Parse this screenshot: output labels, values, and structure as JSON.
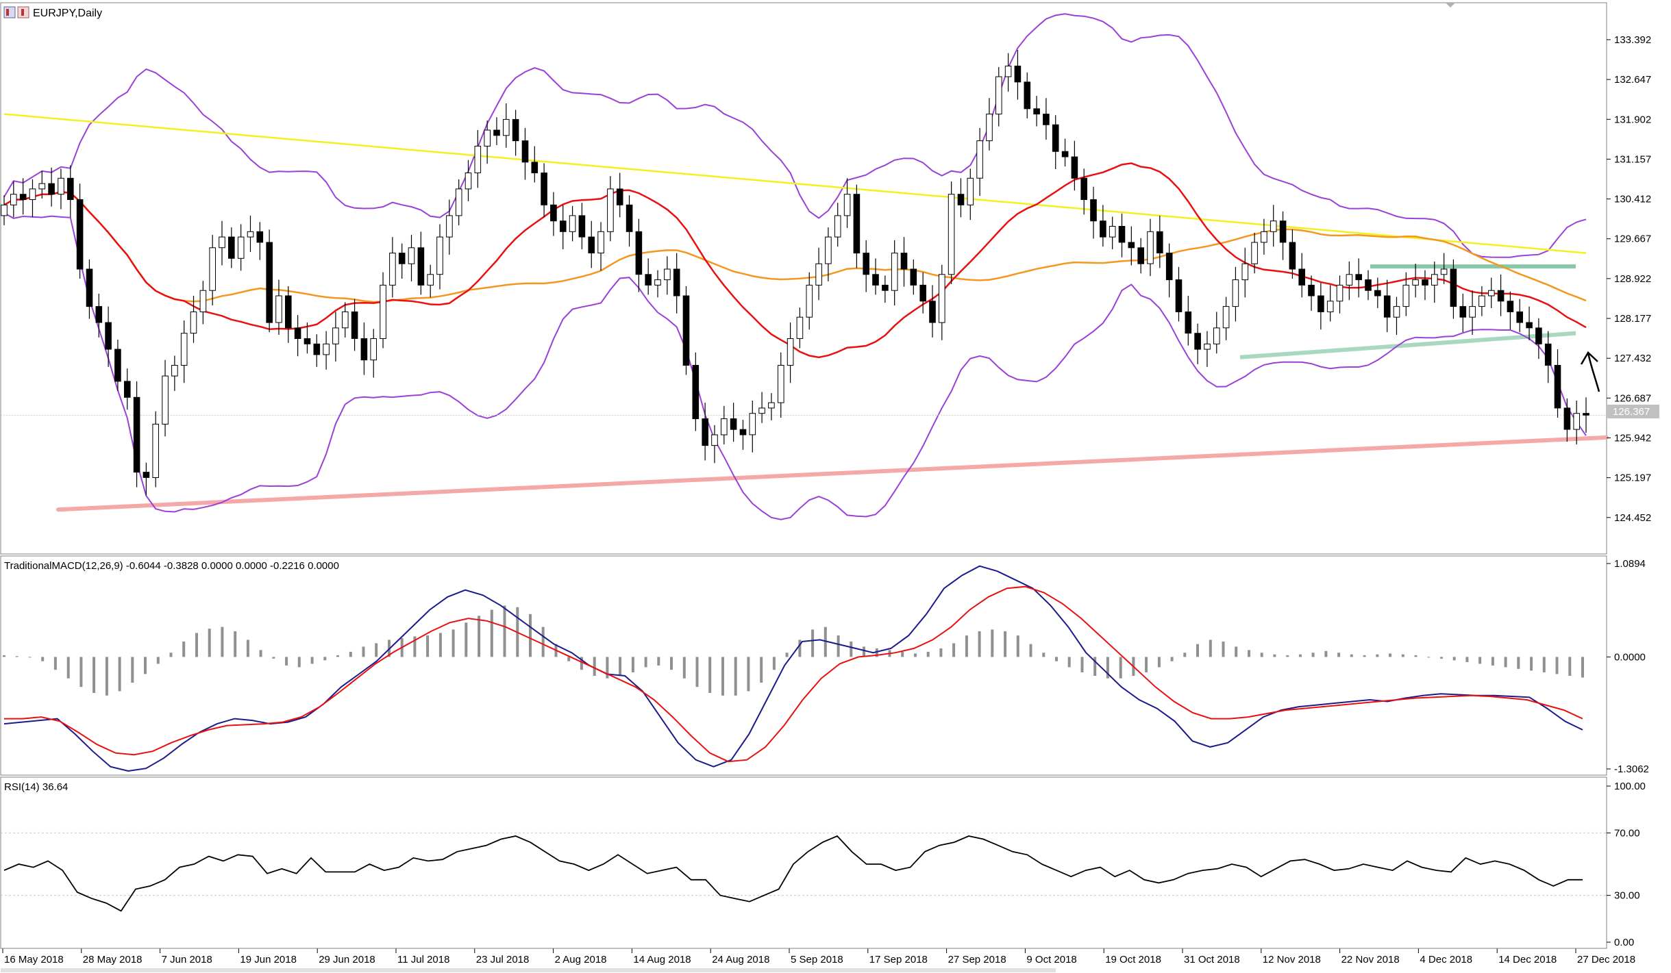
{
  "window": {
    "title": "EURJPY,Daily"
  },
  "chart_data": [
    {
      "type": "candlestick",
      "title": "EURJPY,Daily",
      "ylim": [
        123.95,
        133.75
      ],
      "yticks": [
        133.392,
        132.647,
        131.902,
        131.157,
        130.412,
        129.667,
        128.922,
        128.177,
        127.432,
        126.687,
        125.942,
        125.197,
        124.452
      ],
      "current_price": "126.367",
      "current_price_value": 126.367,
      "grid": false,
      "legend": "none",
      "x_tick_labels": [
        "16 May 2018",
        "28 May 2018",
        "7 Jun 2018",
        "19 Jun 2018",
        "29 Jun 2018",
        "11 Jul 2018",
        "23 Jul 2018",
        "2 Aug 2018",
        "14 Aug 2018",
        "24 Aug 2018",
        "5 Sep 2018",
        "17 Sep 2018",
        "27 Sep 2018",
        "9 Oct 2018",
        "19 Oct 2018",
        "31 Oct 2018",
        "12 Nov 2018",
        "22 Nov 2018",
        "4 Dec 2018",
        "14 Dec 2018",
        "27 Dec 2018"
      ],
      "closes": [
        130.3,
        130.5,
        130.4,
        130.6,
        130.7,
        130.5,
        130.8,
        130.4,
        129.1,
        128.4,
        128.1,
        127.6,
        127.0,
        126.7,
        125.3,
        125.2,
        126.2,
        127.1,
        127.3,
        127.9,
        128.3,
        128.7,
        129.5,
        129.7,
        129.3,
        129.7,
        129.8,
        129.6,
        128.1,
        128.6,
        128.0,
        127.8,
        127.7,
        127.5,
        127.7,
        128.0,
        128.3,
        127.8,
        127.4,
        127.8,
        128.8,
        129.4,
        129.2,
        129.5,
        128.8,
        129.0,
        129.7,
        130.1,
        130.6,
        130.9,
        131.4,
        131.7,
        131.6,
        131.9,
        131.5,
        131.1,
        130.9,
        130.3,
        130.0,
        129.8,
        130.1,
        129.7,
        129.4,
        129.8,
        130.6,
        130.3,
        129.8,
        129.0,
        128.8,
        128.9,
        129.1,
        128.6,
        127.3,
        126.3,
        125.8,
        126.0,
        126.3,
        126.1,
        126.0,
        126.4,
        126.5,
        126.6,
        127.3,
        127.8,
        128.2,
        128.8,
        129.2,
        129.7,
        130.1,
        130.5,
        129.4,
        129.0,
        128.8,
        128.7,
        129.4,
        129.1,
        128.8,
        128.5,
        128.1,
        129.0,
        130.5,
        130.3,
        130.8,
        131.5,
        132.0,
        132.7,
        132.9,
        132.6,
        132.1,
        132.0,
        131.8,
        131.3,
        131.2,
        130.8,
        130.4,
        130.0,
        129.7,
        129.9,
        129.6,
        129.5,
        129.2,
        129.8,
        129.4,
        128.9,
        128.3,
        127.9,
        127.6,
        127.7,
        128.0,
        128.4,
        128.9,
        129.2,
        129.6,
        129.8,
        130.0,
        129.6,
        129.1,
        128.8,
        128.6,
        128.3,
        128.5,
        128.8,
        129.0,
        128.9,
        128.7,
        128.6,
        128.2,
        128.4,
        128.8,
        128.9,
        128.8,
        129.0,
        129.1,
        128.4,
        128.2,
        128.4,
        128.6,
        128.7,
        128.5,
        128.3,
        128.1,
        128.0,
        127.7,
        127.3,
        126.5,
        126.1,
        126.4,
        126.367
      ]
    },
    {
      "type": "line",
      "title": "TraditionalMACD(12,26,9) -0.6044 -0.3828 0.0000 0.0000 -0.2216 0.0000",
      "ylim": [
        -1.3062,
        1.0894
      ],
      "yticks": [
        "1.0894",
        "0.0000",
        "-1.3062"
      ],
      "histogram": [
        0.02,
        0.01,
        0.0,
        -0.05,
        -0.15,
        -0.25,
        -0.35,
        -0.42,
        -0.45,
        -0.4,
        -0.3,
        -0.2,
        -0.08,
        0.05,
        0.18,
        0.28,
        0.33,
        0.35,
        0.3,
        0.2,
        0.08,
        -0.02,
        -0.1,
        -0.12,
        -0.08,
        -0.04,
        0.02,
        0.06,
        0.12,
        0.16,
        0.2,
        0.22,
        0.24,
        0.25,
        0.28,
        0.32,
        0.4,
        0.48,
        0.55,
        0.6,
        0.58,
        0.5,
        0.35,
        0.15,
        -0.05,
        -0.15,
        -0.22,
        -0.25,
        -0.22,
        -0.18,
        -0.12,
        -0.1,
        -0.15,
        -0.25,
        -0.35,
        -0.42,
        -0.45,
        -0.45,
        -0.4,
        -0.3,
        -0.15,
        0.05,
        0.2,
        0.32,
        0.35,
        0.25,
        0.18,
        0.12,
        0.1,
        0.08,
        0.06,
        0.04,
        0.06,
        0.1,
        0.16,
        0.25,
        0.3,
        0.32,
        0.3,
        0.25,
        0.15,
        0.05,
        -0.05,
        -0.12,
        -0.18,
        -0.22,
        -0.25,
        -0.25,
        -0.22,
        -0.18,
        -0.12,
        -0.05,
        0.05,
        0.15,
        0.2,
        0.18,
        0.12,
        0.08,
        0.05,
        0.03,
        0.02,
        0.03,
        0.05,
        0.07,
        0.05,
        0.03,
        0.02,
        0.03,
        0.04,
        0.03,
        0.02,
        0.0,
        -0.02,
        -0.04,
        -0.06,
        -0.08,
        -0.1,
        -0.12,
        -0.14,
        -0.16,
        -0.18,
        -0.2,
        -0.22,
        -0.24
      ],
      "series": [
        {
          "values": [
            -0.78,
            -0.76,
            -0.74,
            -0.72,
            -0.9,
            -1.1,
            -1.28,
            -1.33,
            -1.3,
            -1.18,
            -1.02,
            -0.88,
            -0.78,
            -0.72,
            -0.74,
            -0.78,
            -0.76,
            -0.7,
            -0.55,
            -0.35,
            -0.2,
            -0.05,
            0.15,
            0.35,
            0.55,
            0.7,
            0.78,
            0.72,
            0.6,
            0.45,
            0.3,
            0.15,
            0.05,
            -0.1,
            -0.2,
            -0.22,
            -0.4,
            -0.7,
            -1.0,
            -1.2,
            -1.28,
            -1.2,
            -0.9,
            -0.5,
            -0.1,
            0.18,
            0.2,
            0.15,
            0.1,
            0.05,
            0.1,
            0.25,
            0.5,
            0.8,
            0.95,
            1.06,
            1.0,
            0.9,
            0.8,
            0.6,
            0.35,
            0.05,
            -0.15,
            -0.35,
            -0.5,
            -0.6,
            -0.75,
            -0.98,
            -1.05,
            -1.0,
            -0.85,
            -0.7,
            -0.62,
            -0.58,
            -0.56,
            -0.54,
            -0.52,
            -0.5,
            -0.52,
            -0.48,
            -0.45,
            -0.43,
            -0.44,
            -0.45,
            -0.45,
            -0.46,
            -0.47,
            -0.6,
            -0.75,
            -0.85
          ]
        },
        {
          "values": [
            -0.72,
            -0.72,
            -0.7,
            -0.75,
            -0.88,
            -1.02,
            -1.12,
            -1.14,
            -1.1,
            -1.0,
            -0.92,
            -0.85,
            -0.8,
            -0.79,
            -0.78,
            -0.76,
            -0.7,
            -0.58,
            -0.42,
            -0.25,
            -0.08,
            0.06,
            0.18,
            0.3,
            0.4,
            0.45,
            0.42,
            0.35,
            0.25,
            0.15,
            0.05,
            -0.05,
            -0.15,
            -0.25,
            -0.35,
            -0.5,
            -0.7,
            -0.92,
            -1.12,
            -1.22,
            -1.2,
            -1.05,
            -0.8,
            -0.5,
            -0.25,
            -0.08,
            0.0,
            0.02,
            0.05,
            0.1,
            0.2,
            0.35,
            0.55,
            0.7,
            0.8,
            0.82,
            0.75,
            0.62,
            0.45,
            0.25,
            0.05,
            -0.15,
            -0.35,
            -0.52,
            -0.65,
            -0.72,
            -0.72,
            -0.7,
            -0.66,
            -0.62,
            -0.6,
            -0.58,
            -0.56,
            -0.54,
            -0.52,
            -0.5,
            -0.48,
            -0.47,
            -0.46,
            -0.45,
            -0.46,
            -0.48,
            -0.5,
            -0.56,
            -0.62,
            -0.72
          ]
        }
      ]
    },
    {
      "type": "line",
      "title": "RSI(14) 36.64",
      "ylim": [
        0,
        100
      ],
      "yticks": [
        "100.00",
        "70.00",
        "30.00",
        "0.00"
      ],
      "series": [
        {
          "values": [
            46,
            50,
            48,
            52,
            46,
            32,
            28,
            25,
            20,
            34,
            36,
            40,
            48,
            50,
            55,
            52,
            56,
            55,
            44,
            47,
            44,
            54,
            45,
            45,
            45,
            50,
            46,
            48,
            54,
            52,
            53,
            58,
            60,
            62,
            66,
            68,
            64,
            58,
            52,
            50,
            46,
            50,
            56,
            50,
            44,
            46,
            48,
            40,
            40,
            30,
            28,
            26,
            30,
            34,
            50,
            58,
            64,
            68,
            58,
            50,
            50,
            46,
            48,
            58,
            62,
            64,
            68,
            66,
            62,
            58,
            56,
            50,
            46,
            42,
            46,
            48,
            42,
            46,
            40,
            38,
            40,
            44,
            46,
            47,
            50,
            48,
            42,
            47,
            52,
            53,
            50,
            46,
            47,
            50,
            48,
            46,
            52,
            48,
            46,
            45,
            54,
            50,
            52,
            50,
            46,
            40,
            36,
            40,
            40
          ]
        }
      ]
    }
  ]
}
